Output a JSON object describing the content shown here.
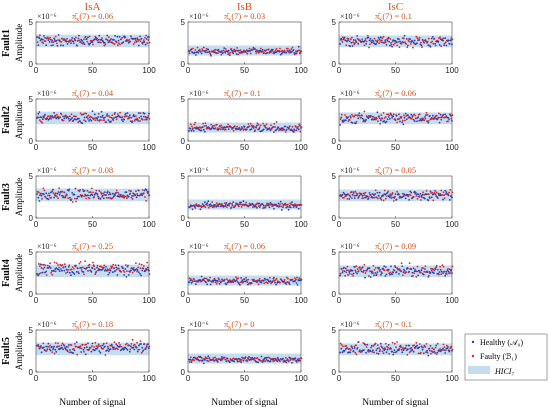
{
  "figure": {
    "columns": [
      "IsA",
      "IsB",
      "IsC"
    ],
    "rows": [
      "Fault1",
      "Fault2",
      "Fault3",
      "Fault4",
      "Fault5"
    ],
    "ylabel": "Amplitude",
    "xlabel": "Number of signal",
    "exponent_label": "×10⁻⁶",
    "pi_prefix": "π̂",
    "pi_sub": "κ",
    "pi_mid": "(7) = "
  },
  "legend": {
    "healthy": "Healthy (𝒜₀)",
    "faulty": "Faulty (ℬ₁)",
    "band": "HICI₇"
  },
  "colors": {
    "healthy": "#1f3fbf",
    "faulty": "#d62728",
    "band": "#c6ddf0",
    "title": "#d95319"
  },
  "chart_data": [
    {
      "type": "scatter",
      "row": "Fault1",
      "column": "IsA",
      "pi": "0.06",
      "xlim": [
        0,
        100
      ],
      "ylim": [
        0,
        5
      ],
      "xticks": [
        0,
        50,
        100
      ],
      "yticks": [
        0,
        5
      ],
      "band": [
        2.0,
        3.5
      ],
      "healthy_center": 2.8,
      "healthy_spread": 0.6,
      "faulty_center": 2.8,
      "faulty_spread": 0.6
    },
    {
      "type": "scatter",
      "row": "Fault1",
      "column": "IsB",
      "pi": "0.03",
      "xlim": [
        0,
        100
      ],
      "ylim": [
        0,
        5
      ],
      "xticks": [
        0,
        50,
        100
      ],
      "yticks": [
        0,
        5
      ],
      "band": [
        1.0,
        2.2
      ],
      "healthy_center": 1.5,
      "healthy_spread": 0.4,
      "faulty_center": 1.5,
      "faulty_spread": 0.4
    },
    {
      "type": "scatter",
      "row": "Fault1",
      "column": "IsC",
      "pi": "0.1",
      "xlim": [
        0,
        100
      ],
      "ylim": [
        0,
        5
      ],
      "xticks": [
        0,
        50,
        100
      ],
      "yticks": [
        0,
        5
      ],
      "band": [
        2.0,
        3.4
      ],
      "healthy_center": 2.7,
      "healthy_spread": 0.6,
      "faulty_center": 2.7,
      "faulty_spread": 0.7
    },
    {
      "type": "scatter",
      "row": "Fault2",
      "column": "IsA",
      "pi": "0.04",
      "xlim": [
        0,
        100
      ],
      "ylim": [
        0,
        5
      ],
      "xticks": [
        0,
        50,
        100
      ],
      "yticks": [
        0,
        5
      ],
      "band": [
        2.0,
        3.5
      ],
      "healthy_center": 2.8,
      "healthy_spread": 0.6,
      "faulty_center": 2.8,
      "faulty_spread": 0.6
    },
    {
      "type": "scatter",
      "row": "Fault2",
      "column": "IsB",
      "pi": "0.1",
      "xlim": [
        0,
        100
      ],
      "ylim": [
        0,
        5
      ],
      "xticks": [
        0,
        50,
        100
      ],
      "yticks": [
        0,
        5
      ],
      "band": [
        1.0,
        2.2
      ],
      "healthy_center": 1.5,
      "healthy_spread": 0.4,
      "faulty_center": 1.6,
      "faulty_spread": 0.5
    },
    {
      "type": "scatter",
      "row": "Fault2",
      "column": "IsC",
      "pi": "0.06",
      "xlim": [
        0,
        100
      ],
      "ylim": [
        0,
        5
      ],
      "xticks": [
        0,
        50,
        100
      ],
      "yticks": [
        0,
        5
      ],
      "band": [
        2.0,
        3.4
      ],
      "healthy_center": 2.7,
      "healthy_spread": 0.6,
      "faulty_center": 2.8,
      "faulty_spread": 0.6
    },
    {
      "type": "scatter",
      "row": "Fault3",
      "column": "IsA",
      "pi": "0.08",
      "xlim": [
        0,
        100
      ],
      "ylim": [
        0,
        5
      ],
      "xticks": [
        0,
        50,
        100
      ],
      "yticks": [
        0,
        5
      ],
      "band": [
        2.0,
        3.5
      ],
      "healthy_center": 2.8,
      "healthy_spread": 0.6,
      "faulty_center": 2.8,
      "faulty_spread": 0.7
    },
    {
      "type": "scatter",
      "row": "Fault3",
      "column": "IsB",
      "pi": "0",
      "xlim": [
        0,
        100
      ],
      "ylim": [
        0,
        5
      ],
      "xticks": [
        0,
        50,
        100
      ],
      "yticks": [
        0,
        5
      ],
      "band": [
        1.0,
        2.2
      ],
      "healthy_center": 1.5,
      "healthy_spread": 0.4,
      "faulty_center": 1.5,
      "faulty_spread": 0.3
    },
    {
      "type": "scatter",
      "row": "Fault3",
      "column": "IsC",
      "pi": "0.05",
      "xlim": [
        0,
        100
      ],
      "ylim": [
        0,
        5
      ],
      "xticks": [
        0,
        50,
        100
      ],
      "yticks": [
        0,
        5
      ],
      "band": [
        2.0,
        3.4
      ],
      "healthy_center": 2.7,
      "healthy_spread": 0.6,
      "faulty_center": 2.7,
      "faulty_spread": 0.6
    },
    {
      "type": "scatter",
      "row": "Fault4",
      "column": "IsA",
      "pi": "0.25",
      "xlim": [
        0,
        100
      ],
      "ylim": [
        0,
        5
      ],
      "xticks": [
        0,
        50,
        100
      ],
      "yticks": [
        0,
        5
      ],
      "band": [
        2.0,
        3.5
      ],
      "healthy_center": 2.8,
      "healthy_spread": 0.6,
      "faulty_center": 3.1,
      "faulty_spread": 0.7
    },
    {
      "type": "scatter",
      "row": "Fault4",
      "column": "IsB",
      "pi": "0.06",
      "xlim": [
        0,
        100
      ],
      "ylim": [
        0,
        5
      ],
      "xticks": [
        0,
        50,
        100
      ],
      "yticks": [
        0,
        5
      ],
      "band": [
        1.0,
        2.2
      ],
      "healthy_center": 1.5,
      "healthy_spread": 0.4,
      "faulty_center": 1.6,
      "faulty_spread": 0.4
    },
    {
      "type": "scatter",
      "row": "Fault4",
      "column": "IsC",
      "pi": "0.09",
      "xlim": [
        0,
        100
      ],
      "ylim": [
        0,
        5
      ],
      "xticks": [
        0,
        50,
        100
      ],
      "yticks": [
        0,
        5
      ],
      "band": [
        2.0,
        3.4
      ],
      "healthy_center": 2.7,
      "healthy_spread": 0.6,
      "faulty_center": 2.8,
      "faulty_spread": 0.7
    },
    {
      "type": "scatter",
      "row": "Fault5",
      "column": "IsA",
      "pi": "0.18",
      "xlim": [
        0,
        100
      ],
      "ylim": [
        0,
        5
      ],
      "xticks": [
        0,
        50,
        100
      ],
      "yticks": [
        0,
        5
      ],
      "band": [
        2.0,
        3.5
      ],
      "healthy_center": 2.8,
      "healthy_spread": 0.6,
      "faulty_center": 3.0,
      "faulty_spread": 0.7
    },
    {
      "type": "scatter",
      "row": "Fault5",
      "column": "IsB",
      "pi": "0",
      "xlim": [
        0,
        100
      ],
      "ylim": [
        0,
        5
      ],
      "xticks": [
        0,
        50,
        100
      ],
      "yticks": [
        0,
        5
      ],
      "band": [
        1.0,
        2.2
      ],
      "healthy_center": 1.5,
      "healthy_spread": 0.4,
      "faulty_center": 1.5,
      "faulty_spread": 0.3
    },
    {
      "type": "scatter",
      "row": "Fault5",
      "column": "IsC",
      "pi": "0.1",
      "xlim": [
        0,
        100
      ],
      "ylim": [
        0,
        5
      ],
      "xticks": [
        0,
        50,
        100
      ],
      "yticks": [
        0,
        5
      ],
      "band": [
        2.0,
        3.4
      ],
      "healthy_center": 2.7,
      "healthy_spread": 0.6,
      "faulty_center": 2.8,
      "faulty_spread": 0.7
    }
  ]
}
